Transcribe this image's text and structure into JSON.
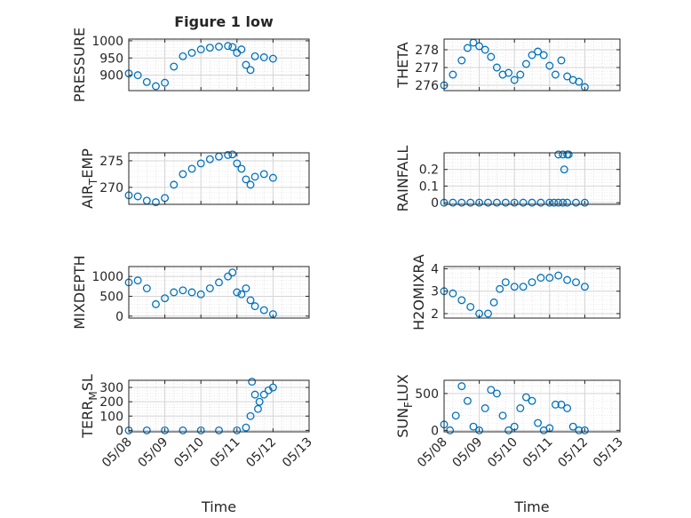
{
  "figure": {
    "title": "Figure 1 low"
  },
  "chart_data": [
    {
      "type": "scatter",
      "id": "pressure",
      "ylabel": "PRESSURE",
      "xlim": [
        "05/08",
        "05/13"
      ],
      "ylim": [
        855,
        1005
      ],
      "yticks": [
        900,
        950,
        1000
      ],
      "xtick_labels": [],
      "marker_color": "#0072BD",
      "x": [
        "05/08 00:00",
        "05/08 06:00",
        "05/08 12:00",
        "05/08 18:00",
        "05/09 00:00",
        "05/09 06:00",
        "05/09 12:00",
        "05/09 18:00",
        "05/10 00:00",
        "05/10 06:00",
        "05/10 12:00",
        "05/10 18:00",
        "05/10 21:00",
        "05/11 00:00",
        "05/11 03:00",
        "05/11 06:00",
        "05/11 09:00",
        "05/11 12:00",
        "05/11 18:00",
        "05/12 00:00"
      ],
      "y": [
        905,
        900,
        880,
        868,
        878,
        925,
        955,
        965,
        975,
        980,
        983,
        985,
        982,
        965,
        975,
        930,
        915,
        955,
        952,
        948
      ]
    },
    {
      "type": "scatter",
      "id": "theta",
      "ylabel": "THETA",
      "xlim": [
        "05/08",
        "05/13"
      ],
      "ylim": [
        275.7,
        278.6
      ],
      "yticks": [
        276,
        277,
        278
      ],
      "xtick_labels": [],
      "marker_color": "#0072BD",
      "x": [
        "05/08 00:00",
        "05/08 06:00",
        "05/08 12:00",
        "05/08 16:00",
        "05/08 20:00",
        "05/09 00:00",
        "05/09 04:00",
        "05/09 08:00",
        "05/09 12:00",
        "05/09 16:00",
        "05/09 20:00",
        "05/10 00:00",
        "05/10 04:00",
        "05/10 08:00",
        "05/10 12:00",
        "05/10 16:00",
        "05/10 20:00",
        "05/11 00:00",
        "05/11 04:00",
        "05/11 08:00",
        "05/11 12:00",
        "05/11 16:00",
        "05/11 20:00",
        "05/12 00:00"
      ],
      "y": [
        276.0,
        276.6,
        277.4,
        278.1,
        278.4,
        278.2,
        278.0,
        277.6,
        277.0,
        276.6,
        276.7,
        276.3,
        276.6,
        277.2,
        277.7,
        277.9,
        277.7,
        277.1,
        276.6,
        277.4,
        276.5,
        276.3,
        276.2,
        275.9
      ]
    },
    {
      "type": "scatter",
      "id": "air-temp",
      "ylabel": "AIR_TEMP",
      "xlim": [
        "05/08",
        "05/13"
      ],
      "ylim": [
        266.8,
        276.5
      ],
      "yticks": [
        270,
        275
      ],
      "xtick_labels": [],
      "marker_color": "#0072BD",
      "x": [
        "05/08 00:00",
        "05/08 06:00",
        "05/08 12:00",
        "05/08 18:00",
        "05/09 00:00",
        "05/09 06:00",
        "05/09 12:00",
        "05/09 18:00",
        "05/10 00:00",
        "05/10 06:00",
        "05/10 12:00",
        "05/10 18:00",
        "05/10 21:00",
        "05/11 00:00",
        "05/11 03:00",
        "05/11 06:00",
        "05/11 09:00",
        "05/11 12:00",
        "05/11 18:00",
        "05/12 00:00"
      ],
      "y": [
        268.5,
        268.3,
        267.5,
        267.2,
        268.0,
        270.5,
        272.5,
        273.5,
        274.5,
        275.3,
        275.8,
        276.1,
        276.2,
        274.5,
        273.5,
        271.5,
        270.5,
        272.0,
        272.5,
        271.8
      ]
    },
    {
      "type": "scatter",
      "id": "rainfall",
      "ylabel": "RAINFALL",
      "xlim": [
        "05/08",
        "05/13"
      ],
      "ylim": [
        -0.01,
        0.3
      ],
      "yticks": [
        0,
        0.1,
        0.2
      ],
      "xtick_labels": [],
      "marker_color": "#0072BD",
      "x": [
        "05/08 00:00",
        "05/08 06:00",
        "05/08 12:00",
        "05/08 18:00",
        "05/09 00:00",
        "05/09 06:00",
        "05/09 12:00",
        "05/09 18:00",
        "05/10 00:00",
        "05/10 06:00",
        "05/10 12:00",
        "05/10 18:00",
        "05/11 00:00",
        "05/11 03:00",
        "05/11 06:00",
        "05/11 09:00",
        "05/11 12:00",
        "05/11 18:00",
        "05/12 00:00",
        "05/11 06:00",
        "05/11 09:00",
        "05/11 12:00",
        "05/11 13:00",
        "05/11 10:00"
      ],
      "y": [
        0,
        0,
        0,
        0,
        0,
        0,
        0,
        0,
        0,
        0,
        0,
        0,
        0,
        0,
        0,
        0,
        0,
        0,
        0,
        0.29,
        0.29,
        0.29,
        0.29,
        0.2
      ]
    },
    {
      "type": "scatter",
      "id": "mixdepth",
      "ylabel": "MIXDEPTH",
      "xlim": [
        "05/08",
        "05/13"
      ],
      "ylim": [
        -50,
        1250
      ],
      "yticks": [
        0,
        500,
        1000
      ],
      "xtick_labels": [],
      "marker_color": "#0072BD",
      "x": [
        "05/08 00:00",
        "05/08 06:00",
        "05/08 12:00",
        "05/08 18:00",
        "05/09 00:00",
        "05/09 06:00",
        "05/09 12:00",
        "05/09 18:00",
        "05/10 00:00",
        "05/10 06:00",
        "05/10 12:00",
        "05/10 18:00",
        "05/10 21:00",
        "05/11 00:00",
        "05/11 03:00",
        "05/11 06:00",
        "05/11 09:00",
        "05/11 12:00",
        "05/11 18:00",
        "05/12 00:00"
      ],
      "y": [
        850,
        900,
        700,
        300,
        450,
        600,
        650,
        600,
        550,
        700,
        850,
        1000,
        1100,
        600,
        550,
        700,
        400,
        250,
        150,
        50
      ]
    },
    {
      "type": "scatter",
      "id": "h2omixra",
      "ylabel": "H2OMIXRA",
      "xlim": [
        "05/08",
        "05/13"
      ],
      "ylim": [
        1.8,
        4.1
      ],
      "yticks": [
        2,
        3,
        4
      ],
      "xtick_labels": [],
      "marker_color": "#0072BD",
      "x": [
        "05/08 00:00",
        "05/08 06:00",
        "05/08 12:00",
        "05/08 18:00",
        "05/09 00:00",
        "05/09 06:00",
        "05/09 10:00",
        "05/09 14:00",
        "05/09 18:00",
        "05/10 00:00",
        "05/10 06:00",
        "05/10 12:00",
        "05/10 18:00",
        "05/11 00:00",
        "05/11 06:00",
        "05/11 12:00",
        "05/11 18:00",
        "05/12 00:00"
      ],
      "y": [
        3.0,
        2.9,
        2.6,
        2.3,
        2.0,
        2.0,
        2.5,
        3.1,
        3.4,
        3.2,
        3.2,
        3.4,
        3.6,
        3.6,
        3.7,
        3.5,
        3.4,
        3.2
      ]
    },
    {
      "type": "scatter",
      "id": "terr-msl",
      "ylabel": "TERR_MSL",
      "xlim": [
        "05/08",
        "05/13"
      ],
      "ylim": [
        -10,
        350
      ],
      "yticks": [
        0,
        100,
        200,
        300
      ],
      "xtick_labels": [
        "05/08",
        "05/09",
        "05/10",
        "05/11",
        "05/12",
        "05/13"
      ],
      "xlabel": "Time",
      "marker_color": "#0072BD",
      "x": [
        "05/08 00:00",
        "05/08 12:00",
        "05/09 00:00",
        "05/09 12:00",
        "05/10 00:00",
        "05/10 12:00",
        "05/11 00:00",
        "05/11 06:00",
        "05/11 09:00",
        "05/11 12:00",
        "05/11 15:00",
        "05/11 18:00",
        "05/11 21:00",
        "05/12 00:00",
        "05/11 10:00",
        "05/11 14:00"
      ],
      "y": [
        0,
        0,
        0,
        0,
        0,
        0,
        0,
        20,
        100,
        250,
        200,
        250,
        280,
        300,
        340,
        150
      ]
    },
    {
      "type": "scatter",
      "id": "sun-flux",
      "ylabel": "SUN_FLUX",
      "xlim": [
        "05/08",
        "05/13"
      ],
      "ylim": [
        -20,
        680
      ],
      "yticks": [
        0,
        500
      ],
      "xtick_labels": [
        "05/08",
        "05/09",
        "05/10",
        "05/11",
        "05/12",
        "05/13"
      ],
      "xlabel": "Time",
      "marker_color": "#0072BD",
      "x": [
        "05/08 00:00",
        "05/08 04:00",
        "05/08 08:00",
        "05/08 12:00",
        "05/08 16:00",
        "05/08 20:00",
        "05/09 00:00",
        "05/09 04:00",
        "05/09 08:00",
        "05/09 12:00",
        "05/09 16:00",
        "05/09 20:00",
        "05/10 00:00",
        "05/10 04:00",
        "05/10 08:00",
        "05/10 12:00",
        "05/10 16:00",
        "05/10 20:00",
        "05/11 00:00",
        "05/11 04:00",
        "05/11 08:00",
        "05/11 12:00",
        "05/11 16:00",
        "05/11 20:00",
        "05/12 00:00"
      ],
      "y": [
        80,
        0,
        200,
        600,
        400,
        50,
        0,
        300,
        550,
        500,
        200,
        0,
        50,
        300,
        450,
        400,
        100,
        0,
        30,
        350,
        350,
        300,
        50,
        0,
        0
      ]
    }
  ]
}
